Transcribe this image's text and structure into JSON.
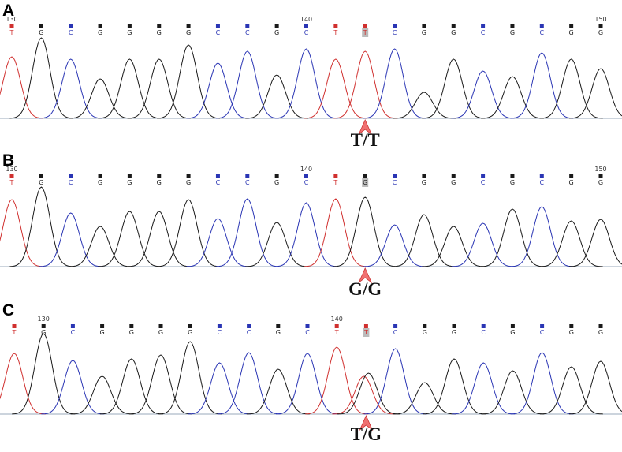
{
  "panels": [
    {
      "label": "A",
      "position_labels": [
        "130",
        "140",
        "150"
      ],
      "bases": [
        "T",
        "G",
        "C",
        "G",
        "G",
        "G",
        "G",
        "C",
        "C",
        "G",
        "C",
        "T",
        "T",
        "C",
        "G",
        "G",
        "C",
        "G",
        "C",
        "G",
        "G"
      ],
      "genotype": "T/T"
    },
    {
      "label": "B",
      "position_labels": [
        "130",
        "140",
        "150"
      ],
      "bases": [
        "T",
        "G",
        "C",
        "G",
        "G",
        "G",
        "G",
        "C",
        "C",
        "G",
        "C",
        "T",
        "G",
        "C",
        "G",
        "G",
        "C",
        "G",
        "C",
        "G",
        "G"
      ],
      "genotype": "G/G"
    },
    {
      "label": "C",
      "position_labels": [
        "130",
        "140"
      ],
      "bases": [
        "T",
        "G",
        "C",
        "G",
        "G",
        "G",
        "G",
        "C",
        "C",
        "G",
        "C",
        "T",
        "T",
        "C",
        "G",
        "G",
        "C",
        "G",
        "C",
        "G",
        "G"
      ],
      "genotype": "T/G"
    }
  ]
}
